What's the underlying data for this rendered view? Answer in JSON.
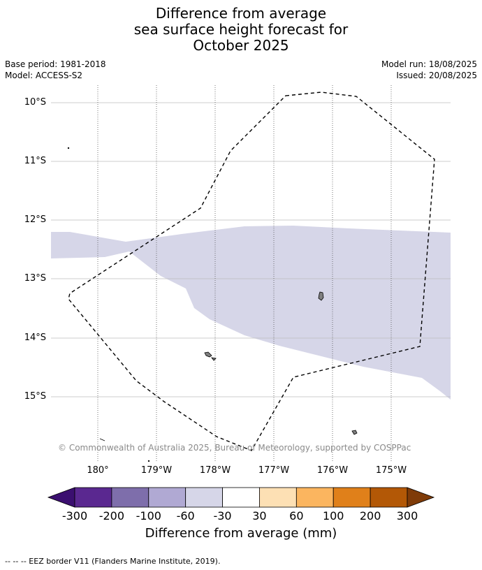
{
  "title": {
    "line1": "Difference from average",
    "line2": "sea surface height forecast for",
    "line3": "October 2025"
  },
  "meta": {
    "base_period": "Base period: 1981-2018",
    "model": "Model: ACCESS-S2",
    "model_run": "Model run: 18/08/2025",
    "issued": "Issued: 20/08/2025"
  },
  "map": {
    "lat_labels": [
      "10°S",
      "11°S",
      "12°S",
      "13°S",
      "14°S",
      "15°S"
    ],
    "lon_labels": [
      "180°",
      "179°W",
      "178°W",
      "177°W",
      "176°W",
      "175°W"
    ],
    "anomaly_band_color": "#d6d6e8",
    "copyright": "© Commonwealth of Australia 2025, Bureau of Meteorology, supported by COSPPac"
  },
  "colorbar": {
    "ticks": [
      "-300",
      "-200",
      "-100",
      "-60",
      "-30",
      "30",
      "60",
      "100",
      "200",
      "300"
    ],
    "colors": [
      "#3b0f70",
      "#5a2890",
      "#7e6eab",
      "#b0a9d3",
      "#d6d6e8",
      "#ffffff",
      "#fde0b4",
      "#fbb55f",
      "#e0801a",
      "#b35806",
      "#7f3b08"
    ],
    "label": "Difference from average (mm)"
  },
  "legend": {
    "eez": "--  --  -- EEZ border V11 (Flanders Marine Institute, 2019)."
  }
}
